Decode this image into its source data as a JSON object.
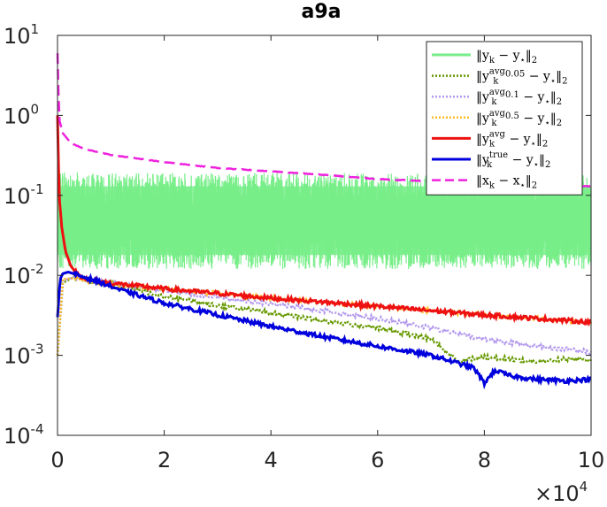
{
  "chart_data": {
    "type": "line",
    "title": "a9a",
    "xlabel": "",
    "ylabel": "",
    "x_scale": "linear",
    "y_scale": "log",
    "xlim": [
      0,
      100000
    ],
    "ylim": [
      0.0001,
      10
    ],
    "x_ticks": [
      {
        "value": 0,
        "label": "0"
      },
      {
        "value": 20000,
        "label": "2"
      },
      {
        "value": 40000,
        "label": "4"
      },
      {
        "value": 60000,
        "label": "6"
      },
      {
        "value": 80000,
        "label": "8"
      },
      {
        "value": 100000,
        "label": "10"
      }
    ],
    "x_multiplier": {
      "base": "×10",
      "exp": "4"
    },
    "y_ticks": [
      {
        "value": 0.0001,
        "base": "10",
        "exp": "-4"
      },
      {
        "value": 0.001,
        "base": "10",
        "exp": "-3"
      },
      {
        "value": 0.01,
        "base": "10",
        "exp": "-2"
      },
      {
        "value": 0.1,
        "base": "10",
        "exp": "-1"
      },
      {
        "value": 1,
        "base": "10",
        "exp": "0"
      },
      {
        "value": 10,
        "base": "10",
        "exp": "1"
      }
    ],
    "grid": false,
    "legend_position": "top-right",
    "series": [
      {
        "key": "y_k",
        "legend": {
          "pre": "‖y",
          "sub": "k",
          "sup": "",
          "post": " − y",
          "star": "⋆",
          "tail": "‖",
          "tail_sub": "2"
        },
        "color": "#77ee88",
        "style": "solid",
        "kind": "band",
        "x": [
          0,
          500,
          2000,
          5000,
          10000,
          20000,
          40000,
          60000,
          80000,
          100000
        ],
        "upper": [
          0.2,
          0.2,
          0.2,
          0.19,
          0.19,
          0.19,
          0.19,
          0.19,
          0.19,
          0.18
        ],
        "lower": [
          0.012,
          0.012,
          0.012,
          0.012,
          0.012,
          0.012,
          0.012,
          0.012,
          0.012,
          0.012
        ],
        "center": [
          0.05,
          0.05,
          0.05,
          0.05,
          0.05,
          0.05,
          0.05,
          0.05,
          0.05,
          0.05
        ]
      },
      {
        "key": "avg005",
        "legend": {
          "pre": "‖y",
          "sub": "k",
          "sup": "avg",
          "sup_sub": "0.05",
          "post": " − y",
          "star": "⋆",
          "tail": "‖",
          "tail_sub": "2"
        },
        "color": "#669900",
        "style": "dotted",
        "x": [
          0,
          1000,
          3000,
          6000,
          10000,
          20000,
          30000,
          40000,
          50000,
          60000,
          70000,
          75000,
          80000,
          85000,
          90000,
          95000,
          100000
        ],
        "y": [
          0.001,
          0.008,
          0.0095,
          0.0085,
          0.0078,
          0.0055,
          0.0042,
          0.0034,
          0.0027,
          0.0022,
          0.0016,
          0.00085,
          0.00095,
          0.0009,
          0.00082,
          0.0009,
          0.0009
        ]
      },
      {
        "key": "avg01",
        "legend": {
          "pre": "‖y",
          "sub": "k",
          "sup": "avg",
          "sup_sub": "0.1",
          "post": " − y",
          "star": "⋆",
          "tail": "‖",
          "tail_sub": "2"
        },
        "color": "#b399ee",
        "style": "dotted",
        "x": [
          0,
          1000,
          3000,
          6000,
          10000,
          20000,
          30000,
          40000,
          50000,
          60000,
          70000,
          80000,
          90000,
          100000
        ],
        "y": [
          0.001,
          0.0085,
          0.0095,
          0.0087,
          0.008,
          0.0065,
          0.0053,
          0.0044,
          0.0036,
          0.0029,
          0.0022,
          0.0016,
          0.0013,
          0.0011
        ]
      },
      {
        "key": "avg05",
        "legend": {
          "pre": "‖y",
          "sub": "k",
          "sup": "avg",
          "sup_sub": "0.5",
          "post": " − y",
          "star": "⋆",
          "tail": "‖",
          "tail_sub": "2"
        },
        "color": "#ffbb22",
        "style": "dotted",
        "x": [
          0,
          1000,
          3000,
          6000,
          10000,
          20000,
          40000,
          60000,
          80000,
          100000
        ],
        "y": [
          0.001,
          0.009,
          0.0092,
          0.0085,
          0.0078,
          0.0068,
          0.0052,
          0.0041,
          0.0032,
          0.0026
        ]
      },
      {
        "key": "avg",
        "legend": {
          "pre": "‖y",
          "sub": "k",
          "sup": "avg",
          "sup_sub": "",
          "post": " − y",
          "star": "⋆",
          "tail": "‖",
          "tail_sub": "2"
        },
        "color": "#ee1111",
        "style": "solid",
        "x": [
          0,
          300,
          800,
          1500,
          2500,
          4000,
          6000,
          10000,
          20000,
          40000,
          60000,
          80000,
          100000
        ],
        "y": [
          1.0,
          0.1,
          0.04,
          0.02,
          0.013,
          0.01,
          0.0088,
          0.008,
          0.0068,
          0.0052,
          0.0041,
          0.0032,
          0.0026
        ]
      },
      {
        "key": "true",
        "legend": {
          "pre": "‖y",
          "sub": "k",
          "sup": "true",
          "sup_sub": "",
          "post": " − y",
          "star": "⋆",
          "tail": "‖",
          "tail_sub": "2"
        },
        "color": "#0000dd",
        "style": "solid",
        "x": [
          0,
          500,
          1000,
          2000,
          3000,
          5000,
          8000,
          12000,
          20000,
          30000,
          40000,
          50000,
          60000,
          70000,
          78000,
          80000,
          82000,
          85000,
          90000,
          95000,
          100000
        ],
        "y": [
          0.003,
          0.009,
          0.0105,
          0.011,
          0.0105,
          0.0095,
          0.0082,
          0.0065,
          0.0045,
          0.0032,
          0.0023,
          0.0017,
          0.0013,
          0.001,
          0.0007,
          0.00045,
          0.00065,
          0.00055,
          0.0005,
          0.00048,
          0.0005
        ]
      },
      {
        "key": "x_k",
        "legend": {
          "pre": "‖x",
          "sub": "k",
          "sup": "",
          "post": " − x",
          "star": "⋆",
          "tail": "‖",
          "tail_sub": "2"
        },
        "color": "#ee22dd",
        "style": "dashed",
        "x": [
          0,
          300,
          1000,
          2500,
          5000,
          10000,
          20000,
          30000,
          40000,
          50000,
          60000,
          70000,
          80000,
          90000,
          100000
        ],
        "y": [
          6.0,
          0.9,
          0.6,
          0.45,
          0.38,
          0.32,
          0.26,
          0.22,
          0.2,
          0.18,
          0.16,
          0.15,
          0.14,
          0.135,
          0.13
        ]
      }
    ]
  }
}
